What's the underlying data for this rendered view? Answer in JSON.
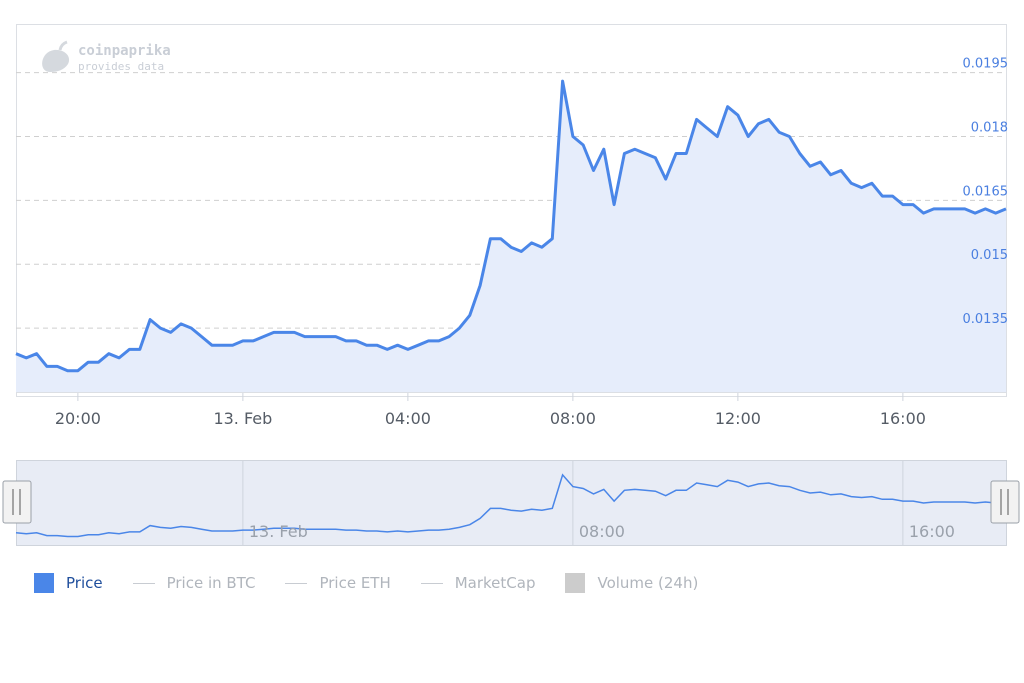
{
  "brand": {
    "name": "coinpaprika",
    "tagline": "provides data",
    "logo_icon": "paprika-icon"
  },
  "colors": {
    "accent": "#4a86e8",
    "area_fill": "#e6edfb",
    "navigator_fill": "#e8ecf5",
    "inactive": "#b0b5bc",
    "volume": "#cccccc"
  },
  "legend": [
    {
      "label": "Price",
      "style": "box",
      "color": "#4a86e8",
      "active": true
    },
    {
      "label": "Price in BTC",
      "style": "line",
      "active": false
    },
    {
      "label": "Price ETH",
      "style": "line",
      "active": false
    },
    {
      "label": "MarketCap",
      "style": "line",
      "active": false
    },
    {
      "label": "Volume (24h)",
      "style": "box",
      "color": "#cccccc",
      "active": false
    }
  ],
  "chart_data": {
    "type": "area",
    "series": [
      {
        "name": "Price",
        "x": [
          0,
          0.25,
          0.5,
          0.75,
          1,
          1.25,
          1.5,
          1.75,
          2,
          2.25,
          2.5,
          2.75,
          3,
          3.25,
          3.5,
          3.75,
          4,
          4.25,
          4.5,
          4.75,
          5,
          5.25,
          5.5,
          5.75,
          6,
          6.25,
          6.5,
          6.75,
          7,
          7.25,
          7.5,
          7.75,
          8,
          8.25,
          8.5,
          8.75,
          9,
          9.25,
          9.5,
          9.75,
          10,
          10.25,
          10.5,
          10.75,
          11,
          11.25,
          11.5,
          11.75,
          12,
          12.25,
          12.5,
          12.75,
          13,
          13.25,
          13.5,
          13.75,
          14,
          14.25,
          14.5,
          14.75,
          15,
          15.25,
          15.5,
          15.75,
          16,
          16.25,
          16.5,
          16.75,
          17,
          17.25,
          17.5,
          17.75,
          18,
          18.25,
          18.5,
          18.75,
          19,
          19.25,
          19.5,
          19.75,
          20,
          20.25,
          20.5,
          20.75,
          21,
          21.25,
          21.5,
          21.75,
          22,
          22.25,
          22.5,
          22.75,
          23,
          23.25,
          23.5,
          23.75,
          24
        ],
        "values": [
          0.0129,
          0.0128,
          0.0129,
          0.0126,
          0.0126,
          0.0125,
          0.0125,
          0.0127,
          0.0127,
          0.0129,
          0.0128,
          0.013,
          0.013,
          0.0137,
          0.0135,
          0.0134,
          0.0136,
          0.0135,
          0.0133,
          0.0131,
          0.0131,
          0.0131,
          0.0132,
          0.0132,
          0.0133,
          0.0134,
          0.0134,
          0.0134,
          0.0133,
          0.0133,
          0.0133,
          0.0133,
          0.0132,
          0.0132,
          0.0131,
          0.0131,
          0.013,
          0.0131,
          0.013,
          0.0131,
          0.0132,
          0.0132,
          0.0133,
          0.0135,
          0.0138,
          0.0145,
          0.0156,
          0.0156,
          0.0154,
          0.0153,
          0.0155,
          0.0154,
          0.0156,
          0.0193,
          0.018,
          0.0178,
          0.0172,
          0.0177,
          0.0164,
          0.0176,
          0.0177,
          0.0176,
          0.0175,
          0.017,
          0.0176,
          0.0176,
          0.0184,
          0.0182,
          0.018,
          0.0187,
          0.0185,
          0.018,
          0.0183,
          0.0184,
          0.0181,
          0.018,
          0.0176,
          0.0173,
          0.0174,
          0.0171,
          0.0172,
          0.0169,
          0.0168,
          0.0169,
          0.0166,
          0.0166,
          0.0164,
          0.0164,
          0.0162,
          0.0163,
          0.0163,
          0.0163,
          0.0163,
          0.0162,
          0.0163,
          0.0162,
          0.0163
        ]
      }
    ],
    "x_ticks": [
      {
        "label": "20:00",
        "x": 1.5
      },
      {
        "label": "13. Feb",
        "x": 5.5
      },
      {
        "label": "04:00",
        "x": 9.5
      },
      {
        "label": "08:00",
        "x": 13.5
      },
      {
        "label": "12:00",
        "x": 17.5
      },
      {
        "label": "16:00",
        "x": 21.5
      }
    ],
    "y_ticks": [
      {
        "label": "0.0135",
        "value": 0.0135
      },
      {
        "label": "0.015",
        "value": 0.015
      },
      {
        "label": "0.0165",
        "value": 0.0165
      },
      {
        "label": "0.018",
        "value": 0.018
      },
      {
        "label": "0.0195",
        "value": 0.0195
      }
    ],
    "navigator_ticks": [
      {
        "label": "13. Feb",
        "x": 5.5
      },
      {
        "label": "08:00",
        "x": 13.5
      },
      {
        "label": "16:00",
        "x": 21.5
      }
    ],
    "xlabel": "",
    "ylabel": "",
    "xlim": [
      0,
      24
    ],
    "ylim": [
      0.012,
      0.0205
    ],
    "grid": true,
    "legend_position": "bottom-left"
  }
}
